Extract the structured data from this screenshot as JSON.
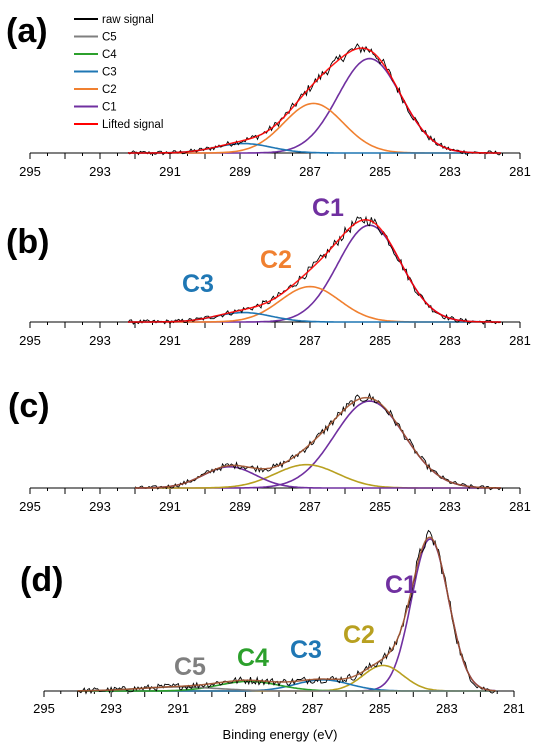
{
  "figure": {
    "panel_labels": [
      "(a)",
      "(b)",
      "(c)",
      "(d)"
    ],
    "xlabel": "Binding energy (eV)"
  },
  "chart_data": [
    {
      "type": "line",
      "panel": "(a)",
      "x_ticks": [
        295,
        293,
        291,
        289,
        287,
        285,
        283,
        281
      ],
      "xlim": [
        295,
        281
      ],
      "x_reversed": true,
      "legend": [
        "raw signal",
        "C5",
        "C4",
        "C3",
        "C2",
        "C1",
        "Lifted signal"
      ],
      "legend_colors": [
        "#000000",
        "#7f7f7f",
        "#2ca02c",
        "#1f77b4",
        "#f08030",
        "#7030a0",
        "#ff0000"
      ],
      "legend_position": "top-left",
      "peaks": [
        {
          "name": "C1",
          "center": 285.3,
          "height": 0.8,
          "sigma": 0.9,
          "color": "#7030a0"
        },
        {
          "name": "C2",
          "center": 286.9,
          "height": 0.42,
          "sigma": 0.85,
          "color": "#f08030"
        },
        {
          "name": "C3",
          "center": 288.9,
          "height": 0.08,
          "sigma": 0.8,
          "color": "#1f77b4"
        }
      ],
      "signal_range": [
        292.2,
        281.5
      ]
    },
    {
      "type": "line",
      "panel": "(b)",
      "x_ticks": [
        295,
        293,
        291,
        289,
        287,
        285,
        283,
        281
      ],
      "xlim": [
        295,
        281
      ],
      "x_reversed": true,
      "annotations": [
        {
          "text": "C1",
          "color": "#7030a0"
        },
        {
          "text": "C2",
          "color": "#f08030"
        },
        {
          "text": "C3",
          "color": "#1f77b4"
        }
      ],
      "peaks": [
        {
          "name": "C1",
          "center": 285.3,
          "height": 0.82,
          "sigma": 0.9,
          "color": "#7030a0"
        },
        {
          "name": "C2",
          "center": 287.0,
          "height": 0.3,
          "sigma": 0.85,
          "color": "#f08030"
        },
        {
          "name": "C3",
          "center": 288.9,
          "height": 0.08,
          "sigma": 0.8,
          "color": "#1f77b4"
        }
      ],
      "signal_range": [
        292.2,
        281.5
      ]
    },
    {
      "type": "line",
      "panel": "(c)",
      "x_ticks": [
        295,
        293,
        291,
        289,
        287,
        285,
        283,
        281
      ],
      "xlim": [
        295,
        281
      ],
      "x_reversed": true,
      "peaks": [
        {
          "name": "C1",
          "center": 285.3,
          "height": 0.82,
          "sigma": 1.0,
          "color": "#7030a0"
        },
        {
          "name": "C2",
          "center": 287.1,
          "height": 0.22,
          "sigma": 0.9,
          "color": "#b8a020"
        },
        {
          "name": "C3",
          "center": 289.3,
          "height": 0.2,
          "sigma": 0.75,
          "color": "#7030a0"
        }
      ],
      "signal_range": [
        292.0,
        281.5
      ]
    },
    {
      "type": "line",
      "panel": "(d)",
      "x_ticks": [
        295,
        293,
        291,
        289,
        287,
        285,
        283,
        281
      ],
      "xlim": [
        295,
        281
      ],
      "x_reversed": true,
      "annotations": [
        {
          "text": "C1",
          "color": "#7030a0"
        },
        {
          "text": "C2",
          "color": "#b8a020"
        },
        {
          "text": "C3",
          "color": "#1f77b4"
        },
        {
          "text": "C4",
          "color": "#2ca02c"
        },
        {
          "text": "C5",
          "color": "#7f7f7f"
        }
      ],
      "peaks": [
        {
          "name": "C1",
          "center": 283.5,
          "height": 0.95,
          "sigma": 0.55,
          "color": "#7030a0"
        },
        {
          "name": "C2",
          "center": 284.9,
          "height": 0.16,
          "sigma": 0.6,
          "color": "#b8a020"
        },
        {
          "name": "C3",
          "center": 286.7,
          "height": 0.07,
          "sigma": 0.8,
          "color": "#1f77b4"
        },
        {
          "name": "C4",
          "center": 288.9,
          "height": 0.06,
          "sigma": 0.9,
          "color": "#2ca02c"
        },
        {
          "name": "C5",
          "center": 291.0,
          "height": 0.025,
          "sigma": 1.2,
          "color": "#7f7f7f"
        }
      ],
      "signal_range": [
        294.0,
        281.5
      ]
    }
  ]
}
